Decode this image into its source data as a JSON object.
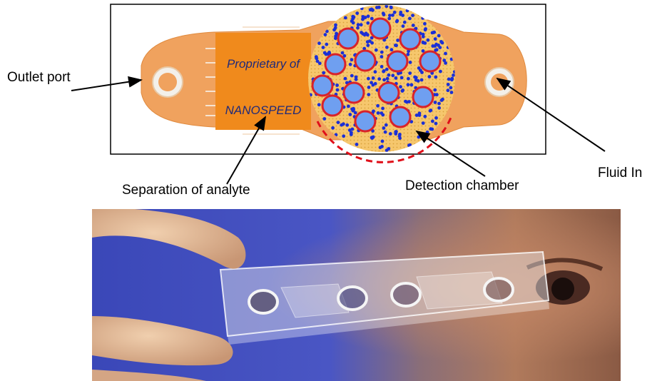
{
  "labels": {
    "outlet_port": "Outlet port",
    "separation": "Separation of analyte",
    "detection_chamber": "Detection chamber",
    "fluid_in": "Fluid In"
  },
  "logo": {
    "line1": "Proprietary of",
    "line2": "NANOSPEED"
  },
  "colors": {
    "chip_body": "#f0a25e",
    "logo_bg": "#f08a1c",
    "logo_text": "#1f2a7a",
    "bead_fill": "#6f9ff0",
    "bead_ring": "#d8232a",
    "dots": "#1b2fd6",
    "dashed_boundary": "#e0101a"
  }
}
